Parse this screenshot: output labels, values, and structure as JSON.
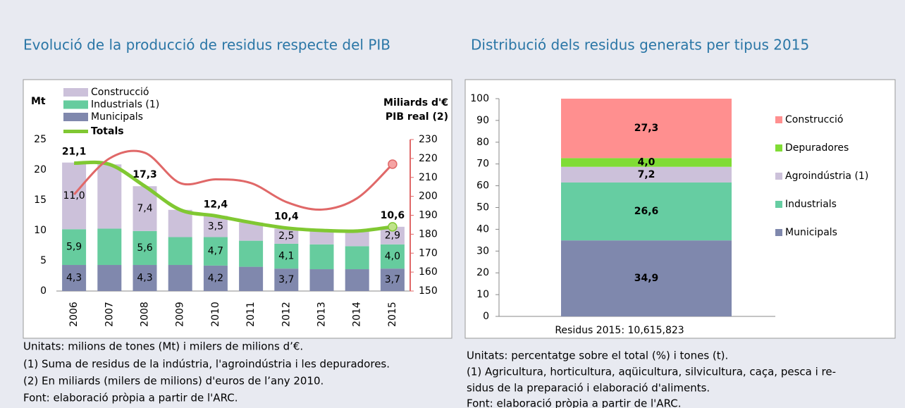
{
  "chart_data": [
    {
      "type": "bar",
      "stacked": true,
      "title": "Evolució de la producció de residus respecte del PIB",
      "ylabel": "Mt",
      "y2label": [
        "Miliards d'€",
        "PIB real (2)"
      ],
      "categories": [
        "2006",
        "2007",
        "2008",
        "2009",
        "2010",
        "2011",
        "2012",
        "2013",
        "2014",
        "2015"
      ],
      "ylim": [
        0,
        25
      ],
      "yticks": [
        0,
        5,
        10,
        15,
        20,
        25
      ],
      "y2lim": [
        150,
        230
      ],
      "y2ticks": [
        150,
        160,
        170,
        180,
        190,
        200,
        210,
        220,
        230
      ],
      "series": [
        {
          "name": "Municipals",
          "color": "#8088ad",
          "values": [
            4.3,
            4.3,
            4.3,
            4.3,
            4.2,
            4.0,
            3.7,
            3.6,
            3.6,
            3.7
          ],
          "value_labels": [
            "4,3",
            null,
            "4,3",
            null,
            "4,2",
            null,
            "3,7",
            null,
            null,
            "3,7"
          ]
        },
        {
          "name": "Industrials (1)",
          "color": "#66cc9e",
          "values": [
            5.9,
            6.0,
            5.6,
            4.6,
            4.7,
            4.3,
            4.1,
            4.1,
            3.8,
            4.0
          ],
          "value_labels": [
            "5,9",
            null,
            "5,6",
            null,
            "4,7",
            null,
            "4,1",
            null,
            null,
            "4,0"
          ]
        },
        {
          "name": "Construcció",
          "color": "#ccc1da",
          "values": [
            11.0,
            10.6,
            7.4,
            4.5,
            3.5,
            3.0,
            2.5,
            2.3,
            2.5,
            2.9
          ],
          "value_labels": [
            "11,0",
            null,
            "7,4",
            null,
            "3,5",
            null,
            "2,5",
            null,
            null,
            "2,9"
          ]
        },
        {
          "name": "Totals",
          "type": "line",
          "color": "#80c832",
          "values": [
            21.1,
            20.9,
            17.3,
            13.4,
            12.4,
            11.3,
            10.4,
            10.0,
            9.9,
            10.6
          ],
          "value_labels": [
            "21,1",
            null,
            "17,3",
            null,
            "12,4",
            null,
            "10,4",
            null,
            null,
            "10,6"
          ]
        },
        {
          "type": "line",
          "axis": "y2",
          "color": "#e06868",
          "values": [
            201,
            220,
            223,
            207,
            209,
            207,
            197,
            193,
            199,
            217
          ]
        }
      ],
      "notes": [
        "Unitats: milions de tones (Mt) i milers de milions d’€.",
        "(1) Suma de residus de la indústria, l'agroindústria i les depuradores.",
        "(2) En miliards (milers de milions) d'euros de l’any 2010.",
        "Font: elaboració pròpia a partir de l'ARC."
      ]
    },
    {
      "type": "bar",
      "stacked": true,
      "title": "Distribució dels residus generats per tipus 2015",
      "categories": [
        "Residus 2015:  10,615,823"
      ],
      "ylim": [
        0,
        100
      ],
      "yticks": [
        0,
        10,
        20,
        30,
        40,
        50,
        60,
        70,
        80,
        90,
        100
      ],
      "series": [
        {
          "name": "Municipals",
          "color": "#7f88ad",
          "values": [
            34.9
          ],
          "value_labels": [
            "34,9"
          ]
        },
        {
          "name": "Industrials",
          "color": "#66cda2",
          "values": [
            26.6
          ],
          "value_labels": [
            "26,6"
          ]
        },
        {
          "name": "Agroindústria (1)",
          "color": "#ccc1da",
          "values": [
            7.2
          ],
          "value_labels": [
            "7,2"
          ]
        },
        {
          "name": "Depuradores",
          "color": "#80dc35",
          "values": [
            4.0
          ],
          "value_labels": [
            "4,0"
          ]
        },
        {
          "name": "Construcció",
          "color": "#ff8f8f",
          "values": [
            27.3
          ],
          "value_labels": [
            "27,3"
          ]
        }
      ],
      "notes": [
        "Unitats: percentatge sobre el total (%) i tones (t).",
        "(1) Agricultura, horticultura, aqüicultura, silvicultura, caça, pesca i re-",
        "sidus de la preparació i elaboració d'aliments.",
        "Font: elaboració pròpia a partir de l'ARC."
      ]
    }
  ]
}
